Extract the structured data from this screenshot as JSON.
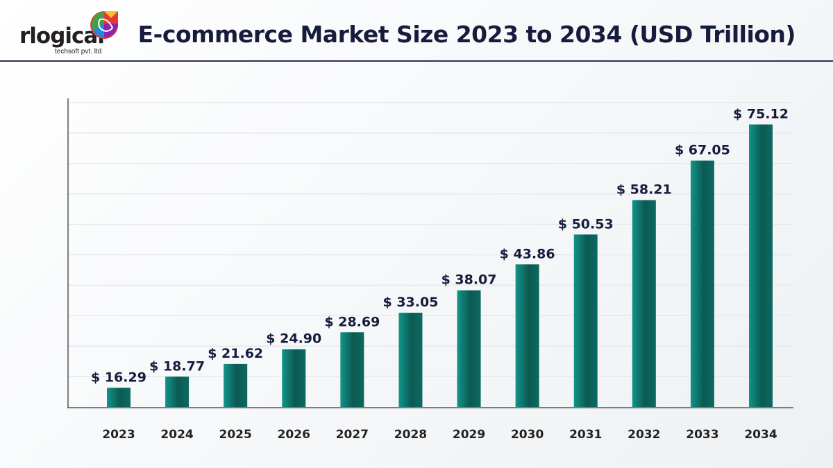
{
  "header": {
    "title": "E-commerce Market Size 2023 to 2034 (USD Trillion)",
    "logo_text": "rlogical",
    "logo_subtext": "techsoft pvt. ltd"
  },
  "colors": {
    "bar_dark": "#0b5a52",
    "bar_light": "#12948a",
    "text": "#171c3d",
    "rule": "#2c2f5a"
  },
  "chart_data": {
    "type": "bar",
    "title": "E-commerce Market Size 2023 to 2034 (USD Trillion)",
    "xlabel": "",
    "ylabel": "",
    "categories": [
      "2023",
      "2024",
      "2025",
      "2026",
      "2027",
      "2028",
      "2029",
      "2030",
      "2031",
      "2032",
      "2033",
      "2034"
    ],
    "values": [
      16.29,
      18.77,
      21.62,
      24.9,
      28.69,
      33.05,
      38.07,
      43.86,
      50.53,
      58.21,
      67.05,
      75.12
    ],
    "data_labels": [
      "$ 16.29",
      "$ 18.77",
      "$ 21.62",
      "$ 24.90",
      "$ 28.69",
      "$ 33.05",
      "$ 38.07",
      "$ 43.86",
      "$ 50.53",
      "$ 58.21",
      "$ 67.05",
      "$ 75.12"
    ],
    "ylim": [
      12,
      80
    ],
    "grid": true,
    "legend": "none"
  }
}
